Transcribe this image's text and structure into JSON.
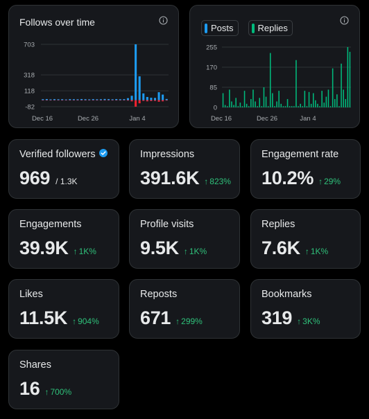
{
  "colors": {
    "accent_blue": "#1d9bf0",
    "accent_green": "#00ba7c",
    "negative_red": "#f4212e",
    "positive": "#2fc07a"
  },
  "follows_chart": {
    "title": "Follows over time",
    "chart_data": {
      "type": "bar",
      "title": "Follows over time",
      "y_ticks": [
        "703",
        "318",
        "118",
        "-82"
      ],
      "x_ticks": [
        "Dec 16",
        "Dec 26",
        "Jan 4"
      ],
      "ylim": [
        -82,
        703
      ],
      "series": [
        {
          "values": [
            12,
            14,
            10,
            13,
            11,
            12,
            9,
            13,
            12,
            11,
            14,
            12,
            10,
            13,
            11,
            12,
            15,
            13,
            11,
            14,
            12,
            13,
            25,
            55,
            703,
            300,
            85,
            40,
            30,
            28,
            100,
            70,
            15
          ]
        },
        {
          "values": [
            -3,
            -4,
            -3,
            -2,
            -4,
            -3,
            -2,
            -3,
            -4,
            -3,
            -2,
            -3,
            -4,
            -3,
            -2,
            -3,
            -3,
            -4,
            -3,
            -2,
            -4,
            -3,
            -6,
            -15,
            -82,
            -40,
            -10,
            -15,
            -12,
            -10,
            -20,
            -15,
            -6
          ]
        }
      ]
    }
  },
  "posts_chart": {
    "legend": [
      {
        "label": "Posts",
        "color": "#1d9bf0"
      },
      {
        "label": "Replies",
        "color": "#00ba7c"
      }
    ],
    "chart_data": {
      "type": "bar",
      "y_ticks": [
        "255",
        "170",
        "85",
        "0"
      ],
      "x_ticks": [
        "Dec 16",
        "Dec 26",
        "Jan 4"
      ],
      "ylim": [
        0,
        255
      ],
      "series": [
        {
          "name": "Posts",
          "values": [
            0,
            0,
            0,
            0,
            0,
            0,
            0,
            0,
            0,
            0,
            0,
            0,
            0,
            0,
            0,
            0,
            0,
            0,
            0,
            0,
            0,
            0,
            0,
            0,
            0,
            0,
            0,
            0,
            0,
            0,
            0,
            0,
            0,
            0,
            0,
            0,
            0,
            0,
            0,
            0,
            0,
            0,
            0,
            0,
            0,
            0,
            0,
            0,
            0,
            0,
            0,
            0,
            0,
            0,
            0,
            0,
            0,
            0,
            0,
            0
          ]
        },
        {
          "name": "Replies",
          "values": [
            60,
            10,
            5,
            75,
            25,
            10,
            40,
            5,
            20,
            5,
            70,
            15,
            5,
            35,
            75,
            25,
            5,
            40,
            5,
            85,
            45,
            5,
            230,
            60,
            5,
            25,
            70,
            15,
            5,
            5,
            35,
            5,
            5,
            5,
            200,
            5,
            15,
            5,
            70,
            5,
            65,
            15,
            60,
            30,
            15,
            5,
            70,
            20,
            45,
            75,
            5,
            165,
            35,
            55,
            5,
            185,
            75,
            35,
            255,
            235
          ]
        }
      ]
    }
  },
  "metrics": [
    {
      "label": "Verified followers",
      "value": "969",
      "sub": "/ 1.3K",
      "delta": "",
      "verified": true
    },
    {
      "label": "Impressions",
      "value": "391.6K",
      "sub": "",
      "delta": "823%"
    },
    {
      "label": "Engagement rate",
      "value": "10.2%",
      "sub": "",
      "delta": "29%"
    },
    {
      "label": "Engagements",
      "value": "39.9K",
      "sub": "",
      "delta": "1K%"
    },
    {
      "label": "Profile visits",
      "value": "9.5K",
      "sub": "",
      "delta": "1K%"
    },
    {
      "label": "Replies",
      "value": "7.6K",
      "sub": "",
      "delta": "1K%"
    },
    {
      "label": "Likes",
      "value": "11.5K",
      "sub": "",
      "delta": "904%"
    },
    {
      "label": "Reposts",
      "value": "671",
      "sub": "",
      "delta": "299%"
    },
    {
      "label": "Bookmarks",
      "value": "319",
      "sub": "",
      "delta": "3K%"
    },
    {
      "label": "Shares",
      "value": "16",
      "sub": "",
      "delta": "700%"
    }
  ],
  "icons": {
    "info": "info-circle-icon",
    "verified": "verified-badge-icon",
    "delta": "arrow-up-icon"
  }
}
